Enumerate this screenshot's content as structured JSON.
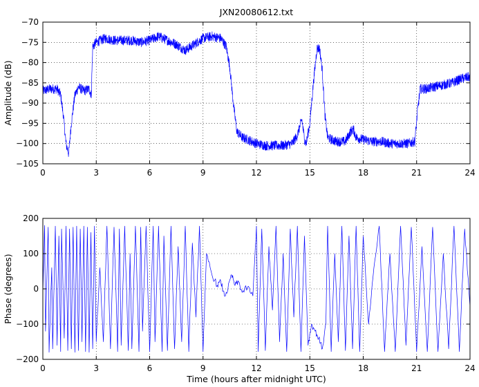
{
  "chart_data": [
    {
      "type": "line",
      "title": "JXN20080612.txt",
      "xlabel": "",
      "ylabel": "Amplitude (dB)",
      "xlim": [
        0,
        24
      ],
      "ylim": [
        -105,
        -70
      ],
      "xticks": [
        0,
        3,
        6,
        9,
        12,
        15,
        18,
        21,
        24
      ],
      "xtick_labels": [
        "0",
        "3",
        "6",
        "9",
        "12",
        "15",
        "18",
        "21",
        "24"
      ],
      "yticks": [
        -105,
        -100,
        -95,
        -90,
        -85,
        -80,
        -75,
        -70
      ],
      "ytick_labels": [
        "−105",
        "−100",
        "−95",
        "−90",
        "−85",
        "−80",
        "−75",
        "−70"
      ],
      "grid": true,
      "line_color": "#0000ff",
      "series": [
        {
          "x": [
            0,
            0.4,
            0.8,
            1.0,
            1.15,
            1.3,
            1.45,
            1.6,
            1.8,
            2.0,
            2.3,
            2.6,
            2.72,
            2.8,
            3.0,
            3.5,
            4.0,
            4.5,
            5.0,
            5.5,
            6.0,
            6.5,
            7.0,
            7.5,
            8.0,
            8.5,
            9.0,
            9.5,
            10.0,
            10.3,
            10.5,
            10.7,
            10.9,
            11.2,
            11.5,
            12.0,
            12.5,
            13.0,
            13.5,
            14.0,
            14.3,
            14.55,
            14.7,
            14.8,
            15.0,
            15.2,
            15.4,
            15.55,
            15.7,
            15.85,
            16.0,
            16.2,
            16.5,
            17.0,
            17.3,
            17.45,
            17.6,
            18.0,
            18.5,
            19.0,
            19.5,
            20.0,
            20.5,
            20.9,
            21.05,
            21.2,
            21.5,
            22.0,
            22.5,
            23.0,
            23.5,
            24.0
          ],
          "y": [
            -87,
            -86.5,
            -86.5,
            -88,
            -93,
            -100,
            -102.5,
            -95,
            -88,
            -86,
            -87,
            -86.5,
            -88,
            -76,
            -75,
            -74,
            -74.5,
            -74.5,
            -74.5,
            -75,
            -74.5,
            -73.5,
            -74.5,
            -75.5,
            -77,
            -75.5,
            -74,
            -73.5,
            -74,
            -76,
            -81,
            -90,
            -97,
            -98.5,
            -99,
            -100,
            -100.5,
            -100.5,
            -100.5,
            -100,
            -98,
            -94,
            -99,
            -100,
            -95,
            -85,
            -76.5,
            -76.5,
            -82,
            -93,
            -98.5,
            -99,
            -99.5,
            -99.5,
            -97,
            -96.5,
            -98.5,
            -99,
            -99.5,
            -99.5,
            -100,
            -100,
            -100,
            -99.5,
            -92,
            -86.5,
            -86.5,
            -86,
            -85.5,
            -85,
            -84,
            -83.5
          ]
        }
      ]
    },
    {
      "type": "line",
      "title": "",
      "xlabel": "Time (hours after midnight UTC)",
      "ylabel": "Phase (degrees)",
      "xlim": [
        0,
        24
      ],
      "ylim": [
        -200,
        200
      ],
      "xticks": [
        0,
        3,
        6,
        9,
        12,
        15,
        18,
        21,
        24
      ],
      "xtick_labels": [
        "0",
        "3",
        "6",
        "9",
        "12",
        "15",
        "18",
        "21",
        "24"
      ],
      "yticks": [
        -200,
        -100,
        0,
        100,
        200
      ],
      "ytick_labels": [
        "−200",
        "−100",
        "0",
        "100",
        "200"
      ],
      "grid": true,
      "line_color": "#0000ff",
      "series": [
        {
          "x": [
            0,
            0.1,
            0.15,
            0.3,
            0.35,
            0.5,
            0.55,
            0.7,
            0.8,
            0.9,
            1.0,
            1.05,
            1.2,
            1.3,
            1.4,
            1.5,
            1.6,
            1.7,
            1.8,
            1.9,
            2.0,
            2.1,
            2.2,
            2.3,
            2.4,
            2.5,
            2.6,
            2.7,
            2.8,
            2.9,
            3.0,
            3.2,
            3.4,
            3.6,
            3.8,
            4.0,
            4.2,
            4.3,
            4.4,
            4.6,
            4.8,
            4.9,
            5.0,
            5.2,
            5.4,
            5.5,
            5.6,
            5.8,
            6.0,
            6.2,
            6.3,
            6.5,
            6.7,
            6.8,
            7.0,
            7.2,
            7.4,
            7.6,
            7.8,
            8.0,
            8.2,
            8.4,
            8.6,
            8.8,
            9.0,
            9.2,
            9.5,
            9.8,
            10.0,
            10.2,
            10.4,
            10.6,
            10.8,
            11.0,
            11.2,
            11.5,
            11.8,
            12.0,
            12.1,
            12.3,
            12.5,
            12.7,
            12.9,
            13.1,
            13.3,
            13.5,
            13.7,
            13.9,
            14.1,
            14.3,
            14.5,
            14.7,
            14.9,
            15.1,
            15.3,
            15.5,
            15.7,
            15.9,
            16.0,
            16.2,
            16.4,
            16.6,
            16.8,
            17.0,
            17.2,
            17.4,
            17.6,
            17.8,
            18.0,
            18.3,
            18.6,
            18.9,
            19.2,
            19.5,
            19.8,
            20.1,
            20.4,
            20.7,
            21.0,
            21.3,
            21.6,
            21.9,
            22.2,
            22.5,
            22.8,
            23.1,
            23.4,
            23.7,
            24.0
          ],
          "y": [
            -10,
            180,
            -120,
            175,
            -180,
            60,
            -170,
            178,
            -160,
            150,
            -178,
            170,
            -140,
            178,
            -175,
            170,
            -170,
            175,
            -180,
            178,
            -175,
            170,
            -150,
            178,
            -178,
            175,
            -180,
            160,
            -170,
            178,
            -150,
            60,
            -150,
            178,
            -170,
            175,
            -178,
            170,
            -160,
            178,
            -175,
            100,
            -170,
            178,
            -178,
            175,
            -120,
            178,
            -178,
            178,
            -150,
            178,
            -178,
            150,
            -175,
            178,
            -170,
            120,
            -150,
            178,
            -178,
            130,
            -80,
            178,
            -178,
            100,
            40,
            10,
            20,
            -20,
            0,
            40,
            10,
            20,
            -10,
            5,
            -20,
            178,
            -178,
            170,
            -175,
            120,
            -60,
            178,
            -150,
            100,
            -178,
            170,
            -80,
            178,
            -178,
            150,
            -160,
            -100,
            -120,
            -140,
            -170,
            -100,
            178,
            -178,
            100,
            -150,
            178,
            -175,
            150,
            -170,
            178,
            -178,
            150,
            -100,
            60,
            178,
            -178,
            100,
            -178,
            178,
            -160,
            175,
            -178,
            120,
            -178,
            175,
            -178,
            100,
            -170,
            178,
            -178,
            170,
            -50
          ]
        }
      ]
    }
  ]
}
